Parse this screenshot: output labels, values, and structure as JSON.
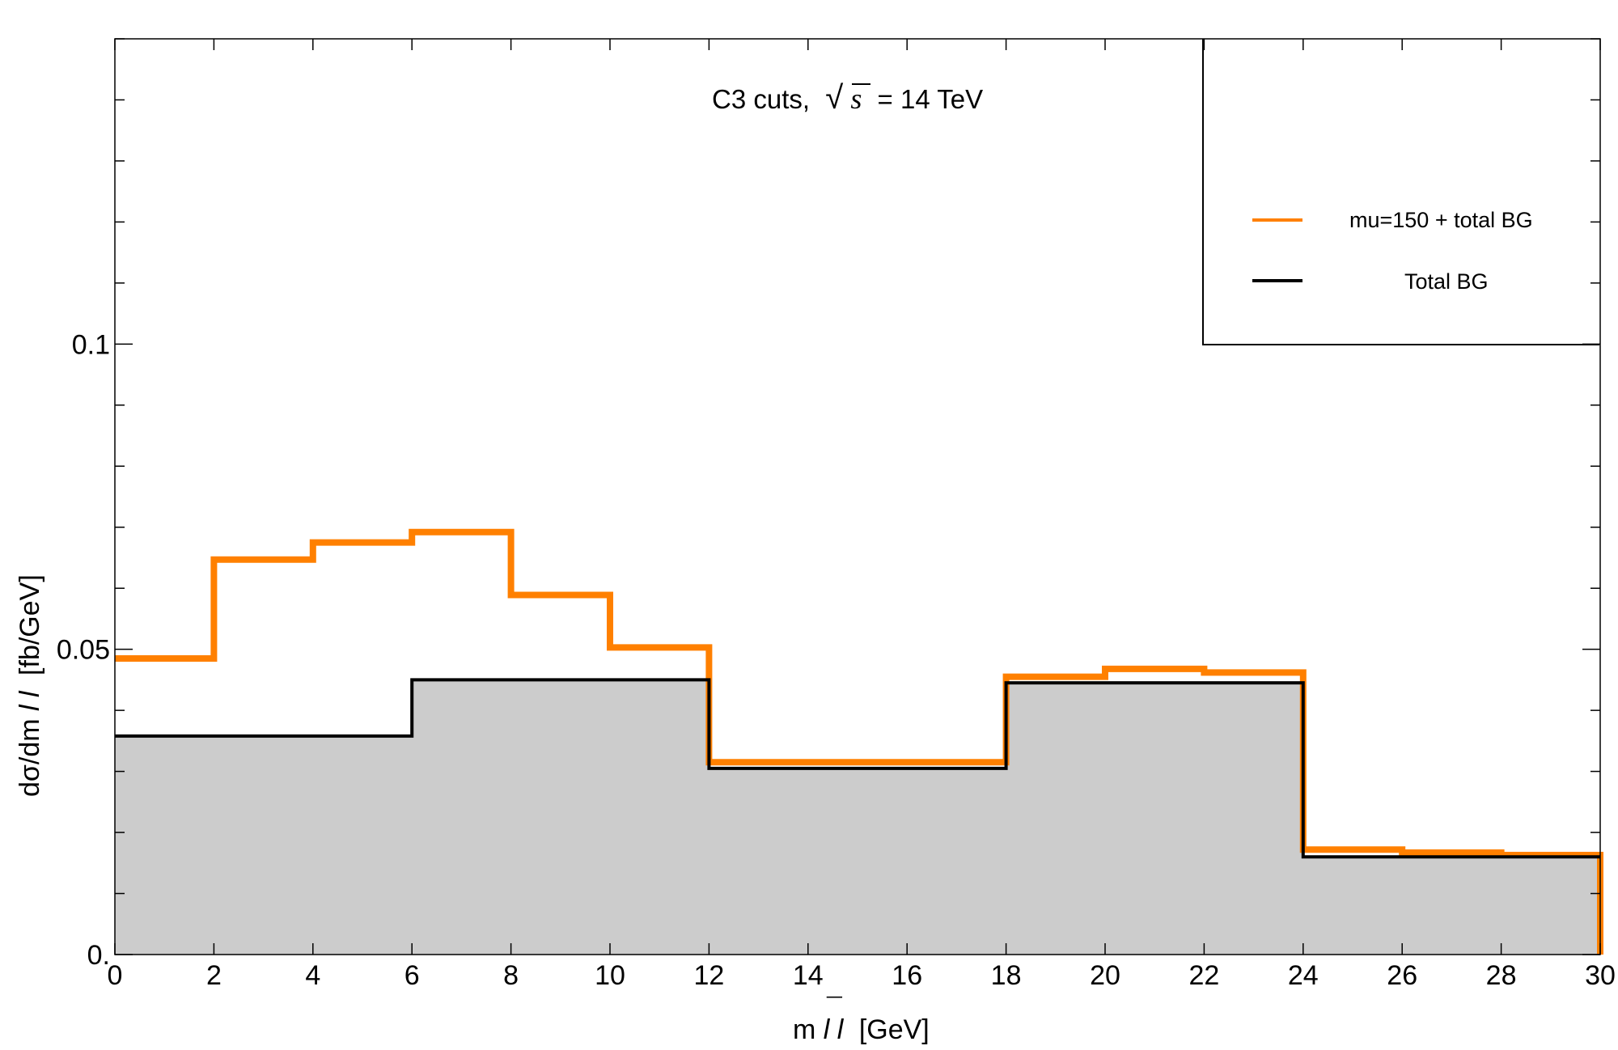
{
  "chart_data": {
    "type": "line",
    "step": true,
    "title": "C3 cuts, √s = 14 TeV",
    "title_parts": {
      "prefix": "C3 cuts,",
      "sqrt_symbol": "√",
      "sqrt_arg": "s",
      "suffix": "= 14 TeV"
    },
    "xlabel": "m",
    "xlabel_italic": "l",
    "xlabel_bar": "¯",
    "xlabel_italic2": "l",
    "xlabel_suffix": "[GeV]",
    "ylabel": "dσ/dm",
    "ylabel_italic": "l",
    "ylabel_bar": "¯",
    "ylabel_italic2": "l",
    "ylabel_suffix": "[fb/GeV]",
    "xlim": [
      0,
      30
    ],
    "ylim": [
      0,
      0.15
    ],
    "x_ticks": [
      0,
      2,
      4,
      6,
      8,
      10,
      12,
      14,
      16,
      18,
      20,
      22,
      24,
      26,
      28,
      30
    ],
    "x_tick_labels": [
      "0",
      "2",
      "4",
      "6",
      "8",
      "10",
      "12",
      "14",
      "16",
      "18",
      "20",
      "22",
      "24",
      "26",
      "28",
      "30"
    ],
    "y_ticks": [
      0,
      0.05,
      0.1
    ],
    "y_tick_labels": [
      "0.",
      "0.05",
      "0.1"
    ],
    "y_minor_step": 0.01,
    "grid": false,
    "legend_position": "top-right",
    "series": [
      {
        "name": "mu=150 + total BG",
        "color": "#ff8000",
        "style": "step-line",
        "bin_edges": [
          0,
          2,
          4,
          6,
          8,
          10,
          12,
          18,
          20,
          22,
          24,
          26,
          28,
          30
        ],
        "values": [
          0.0485,
          0.0647,
          0.0675,
          0.0692,
          0.0589,
          0.0503,
          0.0315,
          0.0455,
          0.0468,
          0.0462,
          0.0172,
          0.0167,
          0.0163
        ]
      },
      {
        "name": "Total BG",
        "color": "#000000",
        "fill": "#cccccc",
        "style": "filled-step",
        "bin_edges": [
          0,
          6,
          12,
          18,
          24,
          30
        ],
        "values": [
          0.0358,
          0.045,
          0.0305,
          0.0445,
          0.016
        ]
      }
    ]
  }
}
